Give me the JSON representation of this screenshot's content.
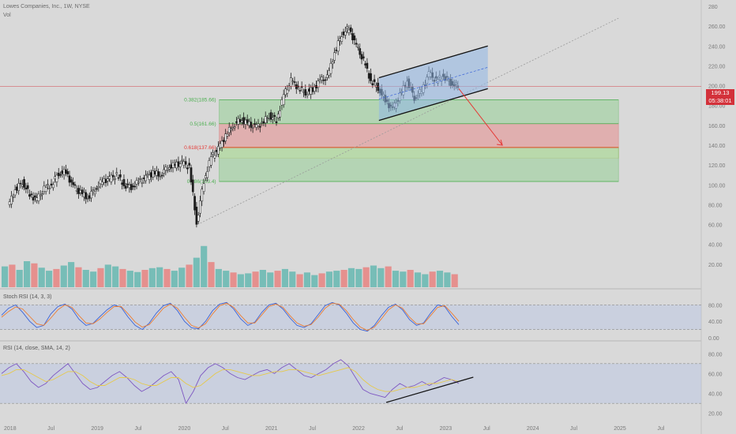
{
  "header": {
    "title": "Lowes Companies, Inc., 1W, NYSE",
    "volume_label": "Vol"
  },
  "price_tag": {
    "price": "199.13",
    "countdown": "05:38:01"
  },
  "colors": {
    "background": "#d9d9d9",
    "bull": "#26a69a",
    "bear": "#ef5350",
    "candle": "#1b1b1b",
    "channel_fill": "#8fb7e6",
    "zone_green": "#a8d3a8",
    "zone_red": "#e3a1a1",
    "zone_yellow": "#f4f1b0",
    "stoch_k": "#3a63d8",
    "stoch_d": "#ee7d2e",
    "rsi": "#7e57c2",
    "rsi_sma": "#e6c94a",
    "price_line": "#d3313a"
  },
  "chart_data": [
    {
      "type": "candlestick",
      "name": "price",
      "ylim": [
        0,
        280
      ],
      "y_axis_scale": "linear",
      "y_ticks": [
        "280",
        "260.00",
        "240.00",
        "220.00",
        "200.00",
        "180.00",
        "160.00",
        "140.00",
        "120.00",
        "100.00",
        "80.00",
        "60.00",
        "40.00",
        "20.00"
      ],
      "x_ticks": [
        "2018",
        "Jul",
        "2019",
        "Jul",
        "2020",
        "Jul",
        "2021",
        "Jul",
        "2022",
        "Jul",
        "2023",
        "Jul",
        "2024",
        "Jul",
        "2025",
        "Jul"
      ],
      "x_range": [
        "2018-01",
        "2025-12"
      ],
      "close_points": [
        {
          "date": "2018-01",
          "close": 78
        },
        {
          "date": "2018-02",
          "close": 95
        },
        {
          "date": "2018-03",
          "close": 103
        },
        {
          "date": "2018-04",
          "close": 90
        },
        {
          "date": "2018-05",
          "close": 85
        },
        {
          "date": "2018-06",
          "close": 96
        },
        {
          "date": "2018-07",
          "close": 100
        },
        {
          "date": "2018-08",
          "close": 112
        },
        {
          "date": "2018-09",
          "close": 113
        },
        {
          "date": "2018-10",
          "close": 98
        },
        {
          "date": "2018-11",
          "close": 92
        },
        {
          "date": "2018-12",
          "close": 87
        },
        {
          "date": "2019-01",
          "close": 96
        },
        {
          "date": "2019-02",
          "close": 104
        },
        {
          "date": "2019-03",
          "close": 106
        },
        {
          "date": "2019-04",
          "close": 110
        },
        {
          "date": "2019-05",
          "close": 100
        },
        {
          "date": "2019-06",
          "close": 98
        },
        {
          "date": "2019-07",
          "close": 103
        },
        {
          "date": "2019-08",
          "close": 107
        },
        {
          "date": "2019-09",
          "close": 112
        },
        {
          "date": "2019-10",
          "close": 110
        },
        {
          "date": "2019-11",
          "close": 118
        },
        {
          "date": "2019-12",
          "close": 120
        },
        {
          "date": "2020-01",
          "close": 122
        },
        {
          "date": "2020-02",
          "close": 118
        },
        {
          "date": "2020-03",
          "close": 62
        },
        {
          "date": "2020-04",
          "close": 104
        },
        {
          "date": "2020-05",
          "close": 128
        },
        {
          "date": "2020-06",
          "close": 136
        },
        {
          "date": "2020-07",
          "close": 150
        },
        {
          "date": "2020-08",
          "close": 160
        },
        {
          "date": "2020-09",
          "close": 166
        },
        {
          "date": "2020-10",
          "close": 162
        },
        {
          "date": "2020-11",
          "close": 158
        },
        {
          "date": "2020-12",
          "close": 162
        },
        {
          "date": "2021-01",
          "close": 170
        },
        {
          "date": "2021-02",
          "close": 165
        },
        {
          "date": "2021-03",
          "close": 190
        },
        {
          "date": "2021-04",
          "close": 205
        },
        {
          "date": "2021-05",
          "close": 198
        },
        {
          "date": "2021-06",
          "close": 193
        },
        {
          "date": "2021-07",
          "close": 196
        },
        {
          "date": "2021-08",
          "close": 205
        },
        {
          "date": "2021-09",
          "close": 208
        },
        {
          "date": "2021-10",
          "close": 233
        },
        {
          "date": "2021-11",
          "close": 252
        },
        {
          "date": "2021-12",
          "close": 258
        },
        {
          "date": "2022-01",
          "close": 240
        },
        {
          "date": "2022-02",
          "close": 225
        },
        {
          "date": "2022-03",
          "close": 205
        },
        {
          "date": "2022-04",
          "close": 198
        },
        {
          "date": "2022-05",
          "close": 185
        },
        {
          "date": "2022-06",
          "close": 176
        },
        {
          "date": "2022-07",
          "close": 190
        },
        {
          "date": "2022-08",
          "close": 205
        },
        {
          "date": "2022-09",
          "close": 188
        },
        {
          "date": "2022-10",
          "close": 195
        },
        {
          "date": "2022-11",
          "close": 212
        },
        {
          "date": "2022-12",
          "close": 205
        },
        {
          "date": "2023-01",
          "close": 210
        },
        {
          "date": "2023-02",
          "close": 203
        },
        {
          "date": "2023-03",
          "close": 199
        }
      ],
      "fibonacci": [
        {
          "label": "0.382(185.66)",
          "level": 185.66,
          "color": "#4caf50"
        },
        {
          "label": "0.5(161.66)",
          "level": 161.66,
          "color": "#4caf50"
        },
        {
          "label": "0.618(137.66)",
          "level": 137.66,
          "color": "#e53935"
        },
        {
          "label": "0.786(103.4)",
          "level": 103.4,
          "color": "#4caf50"
        }
      ],
      "zones": [
        {
          "kind": "green",
          "from": 161.66,
          "to": 185.66,
          "x_from": "2020-06",
          "x_to": "2025-01"
        },
        {
          "kind": "red",
          "from": 137.66,
          "to": 161.66,
          "x_from": "2020-06",
          "x_to": "2025-01"
        },
        {
          "kind": "yellow",
          "from": 127,
          "to": 138,
          "x_from": "2020-06",
          "x_to": "2025-01"
        },
        {
          "kind": "green",
          "from": 103.4,
          "to": 137.66,
          "x_from": "2020-06",
          "x_to": "2025-01"
        }
      ],
      "channel": {
        "upper": [
          {
            "date": "2022-04",
            "y": 208
          },
          {
            "date": "2023-07",
            "y": 240
          }
        ],
        "lower": [
          {
            "date": "2022-04",
            "y": 165
          },
          {
            "date": "2023-07",
            "y": 197
          }
        ]
      },
      "trendline": [
        {
          "date": "2020-03",
          "y": 60
        },
        {
          "date": "2025-01",
          "y": 268
        }
      ],
      "projection_arrow": [
        {
          "date": "2023-03",
          "y": 197
        },
        {
          "date": "2023-09",
          "y": 140
        }
      ],
      "last_price": 199.13
    },
    {
      "type": "bar",
      "name": "Vol",
      "values": [
        48,
        52,
        40,
        60,
        55,
        45,
        38,
        42,
        50,
        58,
        46,
        40,
        36,
        44,
        52,
        48,
        42,
        38,
        35,
        40,
        44,
        46,
        42,
        38,
        45,
        52,
        68,
        95,
        58,
        42,
        38,
        34,
        30,
        32,
        36,
        40,
        34,
        38,
        42,
        36,
        30,
        34,
        28,
        32,
        36,
        38,
        40,
        44,
        42,
        46,
        50,
        44,
        48,
        38,
        36,
        40,
        34,
        30,
        36,
        38,
        34,
        30
      ]
    },
    {
      "type": "line",
      "name": "Stoch RSI (14, 3, 3)",
      "ylim": [
        0,
        100
      ],
      "y_ticks": [
        "80.00",
        "40.00",
        "0.00"
      ],
      "band": [
        20,
        80
      ],
      "series": [
        {
          "name": "K",
          "values": [
            55,
            72,
            80,
            62,
            40,
            25,
            30,
            58,
            76,
            82,
            70,
            45,
            30,
            35,
            52,
            68,
            80,
            74,
            50,
            30,
            20,
            36,
            60,
            78,
            84,
            66,
            40,
            24,
            22,
            40,
            66,
            82,
            86,
            70,
            46,
            30,
            38,
            62,
            80,
            84,
            70,
            48,
            30,
            25,
            34,
            56,
            78,
            86,
            80,
            60,
            36,
            20,
            16,
            30,
            54,
            74,
            82,
            68,
            44,
            30,
            36,
            60,
            80,
            76,
            52,
            32
          ]
        },
        {
          "name": "D",
          "values": [
            50,
            64,
            75,
            70,
            52,
            34,
            30,
            48,
            68,
            80,
            74,
            54,
            36,
            34,
            46,
            62,
            76,
            76,
            58,
            38,
            26,
            32,
            52,
            72,
            82,
            72,
            50,
            30,
            24,
            34,
            58,
            78,
            84,
            74,
            54,
            36,
            36,
            56,
            76,
            82,
            74,
            54,
            36,
            28,
            32,
            50,
            72,
            84,
            82,
            66,
            44,
            26,
            18,
            26,
            46,
            68,
            80,
            72,
            50,
            34,
            34,
            54,
            74,
            78,
            60,
            40
          ]
        }
      ]
    },
    {
      "type": "line",
      "name": "RSI (14, close, SMA, 14, 2)",
      "ylim": [
        15,
        85
      ],
      "y_ticks": [
        "80.00",
        "60.00",
        "40.00",
        "20.00"
      ],
      "band": [
        30,
        70
      ],
      "series": [
        {
          "name": "RSI",
          "values": [
            60,
            66,
            70,
            62,
            52,
            46,
            50,
            58,
            64,
            70,
            60,
            50,
            44,
            46,
            52,
            58,
            62,
            56,
            48,
            42,
            46,
            52,
            58,
            62,
            54,
            30,
            42,
            58,
            66,
            70,
            66,
            60,
            56,
            54,
            58,
            62,
            64,
            60,
            66,
            70,
            64,
            58,
            56,
            60,
            64,
            70,
            74,
            68,
            56,
            44,
            40,
            38,
            36,
            44,
            50,
            46,
            48,
            52,
            48,
            52,
            56,
            54,
            50
          ]
        },
        {
          "name": "SMA",
          "values": [
            58,
            60,
            64,
            64,
            60,
            56,
            52,
            54,
            58,
            62,
            62,
            58,
            52,
            48,
            48,
            52,
            56,
            56,
            54,
            50,
            48,
            48,
            52,
            56,
            56,
            50,
            46,
            48,
            54,
            60,
            64,
            64,
            62,
            60,
            58,
            58,
            60,
            62,
            62,
            64,
            64,
            62,
            60,
            58,
            60,
            62,
            64,
            66,
            62,
            54,
            48,
            44,
            42,
            42,
            44,
            46,
            46,
            48,
            50,
            50,
            52,
            54,
            52
          ]
        }
      ]
    }
  ]
}
